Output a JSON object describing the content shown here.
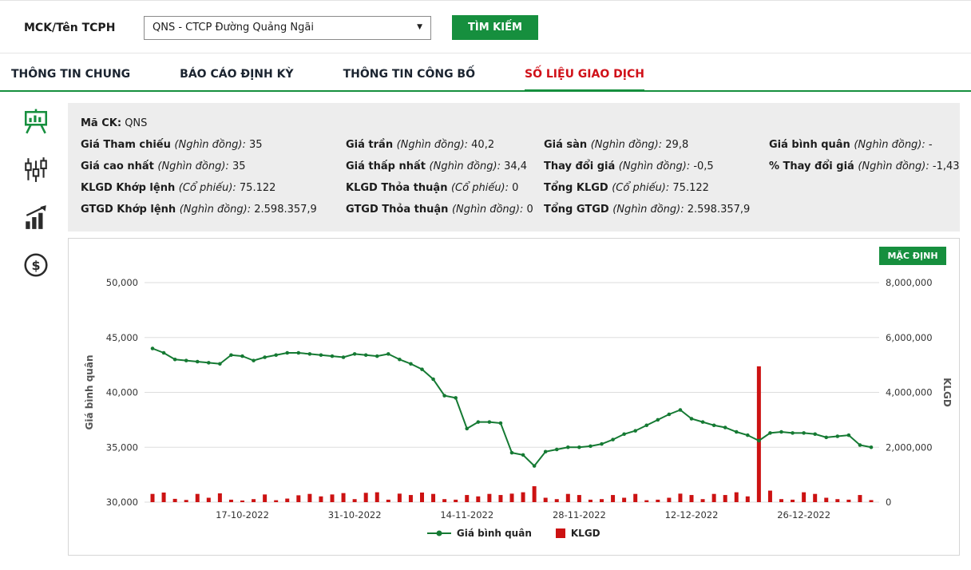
{
  "colors": {
    "green": "#168f3e",
    "red_text": "#d01119",
    "bar_red": "#cc1212",
    "line_green": "#157a33",
    "panel_bg": "#ededed"
  },
  "search_bar": {
    "label": "MCK/Tên TCPH",
    "select_value": "QNS - CTCP Đường Quảng Ngãi",
    "button": "TÌM KIẾM"
  },
  "tabs": [
    {
      "id": "thong-tin-chung",
      "label": "THÔNG TIN CHUNG",
      "active": false
    },
    {
      "id": "bao-cao-dinh-ky",
      "label": "BÁO CÁO ĐỊNH KỲ",
      "active": false
    },
    {
      "id": "thong-tin-cong-bo",
      "label": "THÔNG TIN CÔNG BỐ",
      "active": false
    },
    {
      "id": "so-lieu-giao-dich",
      "label": "SỐ LIỆU GIAO DỊCH",
      "active": true
    }
  ],
  "sidebar": {
    "icons": [
      "presentation-chart",
      "candlestick-chart",
      "bar-chart",
      "dollar"
    ]
  },
  "info": {
    "ticker_label": "Mã CK:",
    "ticker_value": "QNS",
    "rows": [
      [
        {
          "label": "Giá Tham chiếu",
          "unit": "(Nghìn đồng):",
          "value": "35"
        },
        {
          "label": "Giá trần",
          "unit": "(Nghìn đồng):",
          "value": "40,2"
        },
        {
          "label": "Giá sàn",
          "unit": "(Nghìn đồng):",
          "value": "29,8"
        },
        {
          "label": "Giá bình quân",
          "unit": "(Nghìn đồng):",
          "value": "-"
        }
      ],
      [
        {
          "label": "Giá cao nhất",
          "unit": "(Nghìn đồng):",
          "value": "35"
        },
        {
          "label": "Giá thấp nhất",
          "unit": "(Nghìn đồng):",
          "value": "34,4"
        },
        {
          "label": "Thay đổi giá",
          "unit": "(Nghìn đồng):",
          "value": "-0,5"
        },
        {
          "label": "% Thay đổi giá",
          "unit": "(Nghìn đồng):",
          "value": "-1,43"
        }
      ],
      [
        {
          "label": "KLGD Khớp lệnh",
          "unit": "(Cổ phiếu):",
          "value": "75.122"
        },
        {
          "label": "KLGD Thỏa thuận",
          "unit": "(Cổ phiếu):",
          "value": "0"
        },
        {
          "label": "Tổng KLGD",
          "unit": "(Cổ phiếu):",
          "value": "75.122"
        },
        null
      ],
      [
        {
          "label": "GTGD Khớp lệnh",
          "unit": "(Nghìn đồng):",
          "value": "2.598.357,9"
        },
        {
          "label": "GTGD Thỏa thuận",
          "unit": "(Nghìn đồng):",
          "value": "0"
        },
        {
          "label": "Tổng GTGD",
          "unit": "(Nghìn đồng):",
          "value": "2.598.357,9"
        },
        null
      ]
    ]
  },
  "chart": {
    "default_button": "MẶC ĐỊNH"
  },
  "chart_data": {
    "type": "line+bar",
    "x_tick_labels": [
      "17-10-2022",
      "31-10-2022",
      "14-11-2022",
      "28-11-2022",
      "12-12-2022",
      "26-12-2022"
    ],
    "x_tick_indices": [
      8,
      18,
      28,
      38,
      48,
      58
    ],
    "left_axis": {
      "label": "Giá bình quân",
      "min": 30000,
      "max": 50000,
      "ticks": [
        30000,
        35000,
        40000,
        45000,
        50000
      ]
    },
    "right_axis": {
      "label": "KLGD",
      "min": 0,
      "max": 8000000,
      "ticks": [
        0,
        2000000,
        4000000,
        6000000,
        8000000
      ]
    },
    "grid": true,
    "legend_position": "bottom",
    "series": [
      {
        "name": "Giá bình quân",
        "type": "line",
        "axis": "left",
        "color": "#157a33",
        "values": [
          44000,
          43600,
          43000,
          42900,
          42800,
          42700,
          42600,
          43400,
          43300,
          42900,
          43200,
          43400,
          43600,
          43600,
          43500,
          43400,
          43300,
          43200,
          43500,
          43400,
          43300,
          43500,
          43000,
          42600,
          42100,
          41200,
          39700,
          39500,
          36700,
          37300,
          37300,
          37200,
          34500,
          34300,
          33300,
          34600,
          34800,
          35000,
          35000,
          35100,
          35300,
          35700,
          36200,
          36500,
          37000,
          37500,
          38000,
          38400,
          37600,
          37300,
          37000,
          36800,
          36400,
          36100,
          35600,
          36300,
          36400,
          36300,
          36300,
          36200,
          35900,
          36000,
          36100,
          35200,
          35000
        ]
      },
      {
        "name": "KLGD",
        "type": "bar",
        "axis": "right",
        "color": "#cc1212",
        "values": [
          300000,
          350000,
          120000,
          80000,
          300000,
          160000,
          320000,
          90000,
          60000,
          110000,
          280000,
          70000,
          130000,
          250000,
          300000,
          210000,
          280000,
          330000,
          110000,
          340000,
          360000,
          90000,
          310000,
          260000,
          350000,
          300000,
          110000,
          90000,
          260000,
          210000,
          300000,
          260000,
          310000,
          360000,
          580000,
          160000,
          110000,
          300000,
          260000,
          90000,
          110000,
          260000,
          160000,
          300000,
          70000,
          90000,
          160000,
          310000,
          260000,
          110000,
          300000,
          260000,
          360000,
          210000,
          4950000,
          420000,
          110000,
          90000,
          360000,
          300000,
          160000,
          110000,
          90000,
          260000,
          75122
        ]
      }
    ]
  }
}
